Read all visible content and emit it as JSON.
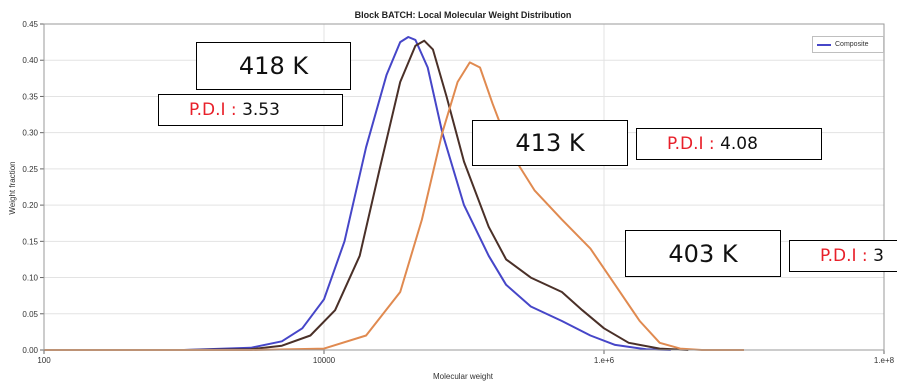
{
  "chart_data": {
    "type": "line",
    "title": "Block BATCH: Local Molecular Weight Distribution",
    "xlabel": "Molecular weight",
    "ylabel": "Weight fraction",
    "xscale": "log",
    "xlim": [
      100,
      100000000
    ],
    "ylim": [
      0,
      0.45
    ],
    "x_ticks": [
      100,
      10000,
      1000000,
      100000000
    ],
    "x_tick_labels": [
      "100",
      "10000",
      "1.e+6",
      "1.e+8"
    ],
    "y_ticks": [
      0.0,
      0.05,
      0.1,
      0.15,
      0.2,
      0.25,
      0.3,
      0.35,
      0.4,
      0.45
    ],
    "y_tick_labels": [
      "0.00",
      "0.05",
      "0.10",
      "0.15",
      "0.20",
      "0.25",
      "0.30",
      "0.35",
      "0.40",
      "0.45"
    ],
    "grid": true,
    "legend_position": "top-right",
    "series": [
      {
        "name": "Composite",
        "color": "#4646c8",
        "points": [
          [
            100,
            0
          ],
          [
            1000,
            0
          ],
          [
            3000,
            0.003
          ],
          [
            5000,
            0.012
          ],
          [
            7000,
            0.03
          ],
          [
            10000,
            0.07
          ],
          [
            14000,
            0.15
          ],
          [
            20000,
            0.28
          ],
          [
            28000,
            0.38
          ],
          [
            35000,
            0.425
          ],
          [
            40000,
            0.432
          ],
          [
            45000,
            0.428
          ],
          [
            55000,
            0.39
          ],
          [
            70000,
            0.3
          ],
          [
            100000,
            0.2
          ],
          [
            150000,
            0.13
          ],
          [
            200000,
            0.09
          ],
          [
            300000,
            0.06
          ],
          [
            500000,
            0.04
          ],
          [
            800000,
            0.02
          ],
          [
            1200000,
            0.007
          ],
          [
            2000000,
            0.001
          ],
          [
            3000000,
            0
          ]
        ]
      },
      {
        "color": "#4a3028",
        "points": [
          [
            100,
            0
          ],
          [
            1000,
            0
          ],
          [
            3000,
            0.001
          ],
          [
            5000,
            0.006
          ],
          [
            8000,
            0.02
          ],
          [
            12000,
            0.055
          ],
          [
            18000,
            0.13
          ],
          [
            25000,
            0.25
          ],
          [
            35000,
            0.37
          ],
          [
            45000,
            0.42
          ],
          [
            52000,
            0.427
          ],
          [
            60000,
            0.415
          ],
          [
            75000,
            0.35
          ],
          [
            100000,
            0.26
          ],
          [
            150000,
            0.17
          ],
          [
            200000,
            0.125
          ],
          [
            300000,
            0.1
          ],
          [
            500000,
            0.08
          ],
          [
            700000,
            0.055
          ],
          [
            1000000,
            0.03
          ],
          [
            1500000,
            0.01
          ],
          [
            2500000,
            0.002
          ],
          [
            4000000,
            0
          ]
        ]
      },
      {
        "color": "#e08a50",
        "points": [
          [
            100,
            0
          ],
          [
            3000,
            0
          ],
          [
            10000,
            0.002
          ],
          [
            20000,
            0.02
          ],
          [
            35000,
            0.08
          ],
          [
            50000,
            0.18
          ],
          [
            70000,
            0.3
          ],
          [
            90000,
            0.37
          ],
          [
            110000,
            0.397
          ],
          [
            130000,
            0.39
          ],
          [
            160000,
            0.34
          ],
          [
            220000,
            0.27
          ],
          [
            320000,
            0.22
          ],
          [
            500000,
            0.18
          ],
          [
            800000,
            0.14
          ],
          [
            1200000,
            0.09
          ],
          [
            1800000,
            0.04
          ],
          [
            2500000,
            0.01
          ],
          [
            3500000,
            0.002
          ],
          [
            5000000,
            0
          ],
          [
            10000000,
            0
          ]
        ]
      }
    ]
  },
  "annotations": [
    {
      "mw": "418 K",
      "pdi_label": "P.D.I :",
      "pdi_value": "3.53"
    },
    {
      "mw": "413 K",
      "pdi_label": "P.D.I :",
      "pdi_value": "4.08"
    },
    {
      "mw": "403 K",
      "pdi_label": "P.D.I :",
      "pdi_value": "3"
    }
  ]
}
